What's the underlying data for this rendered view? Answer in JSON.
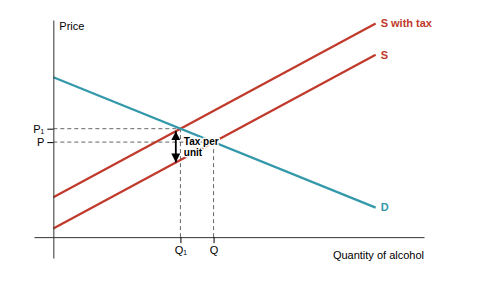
{
  "chart_data": {
    "type": "line",
    "x": [
      0,
      10
    ],
    "series": [
      {
        "name": "S",
        "color": "#c0392b",
        "values": [
          0.5,
          10.5
        ]
      },
      {
        "name": "S with tax",
        "color": "#c0392b",
        "values": [
          2.3,
          12.3
        ]
      },
      {
        "name": "D",
        "color": "#3399aa",
        "values": [
          9.2,
          1.7
        ]
      }
    ],
    "xlabel": "Quantity of alcohol",
    "ylabel": "Price",
    "xlim": [
      -0.6,
      11.5
    ],
    "ylim": [
      -1.2,
      12.5
    ],
    "xticks": [
      {
        "value": 4.971428571428571,
        "label": "Q"
      },
      {
        "value": 3.942857142857143,
        "label": "Q₁"
      }
    ],
    "yticks": [
      {
        "value": 5.471428571428571,
        "label": "P"
      },
      {
        "value": 6.242857142857143,
        "label": "P₁"
      }
    ],
    "annotations": [
      {
        "text": "Tax per\nunit",
        "x": 3.8,
        "y_from": 4.3,
        "y_to": 6.1
      }
    ],
    "grid": false
  }
}
